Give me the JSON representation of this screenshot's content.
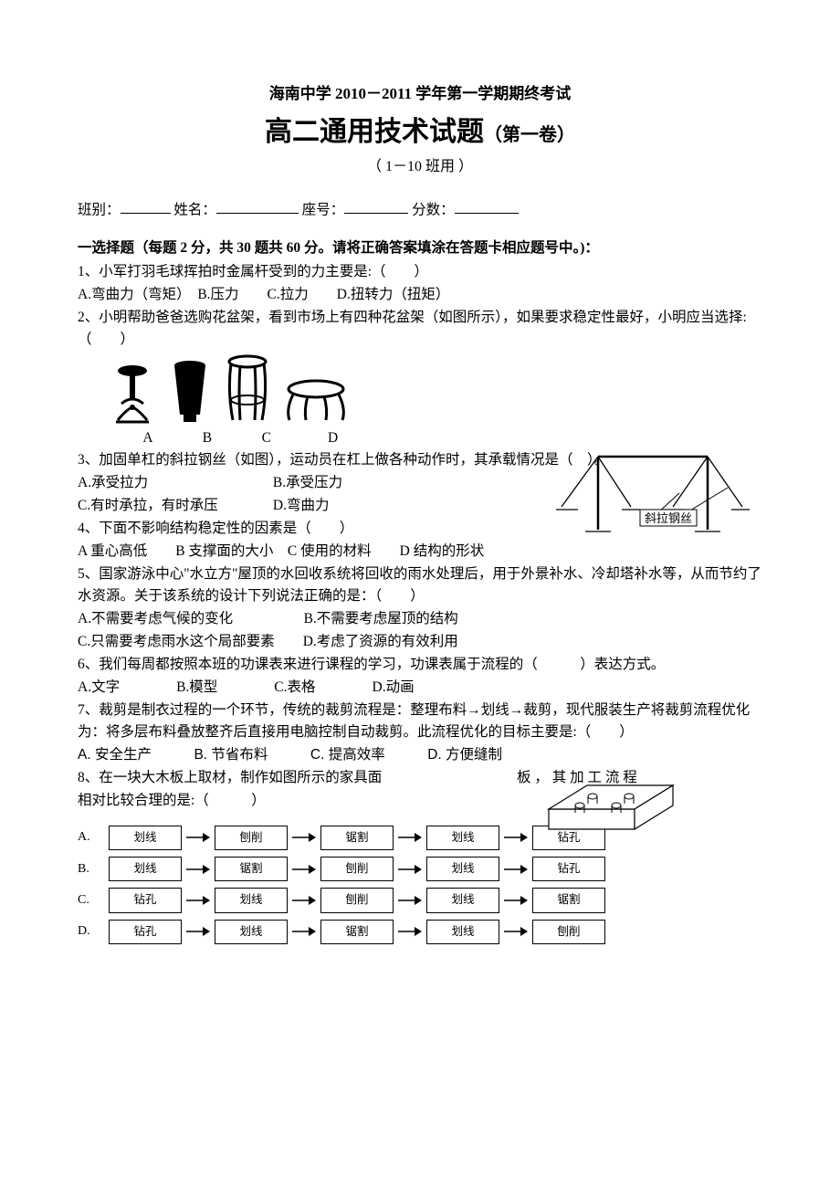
{
  "header": {
    "line1": "海南中学 2010－2011 学年第一学期期终考试",
    "line2_main": "高二通用技术试题",
    "line2_sub": "（第一卷）",
    "line3": "（ 1－10 班用 ）"
  },
  "info": {
    "class_label": "班别：",
    "name_label": "姓名：",
    "seat_label": "座号：",
    "score_label": "分数："
  },
  "section_title": "一选择题（每题 2 分，共 30 题共 60 分。请将正确答案填涂在答题卡相应题号中。)：",
  "q1": {
    "stem": "1、小军打羽毛球挥拍时金属杆受到的力主要是:（　　）",
    "opts": "A.弯曲力（弯矩）　B.压力　　C.拉力　　D.扭转力（扭矩）"
  },
  "q2": {
    "stem": "2、小明帮助爸爸选购花盆架，看到市场上有四种花盆架（如图所示），如果要求稳定性最好，小明应当选择:（　　）",
    "labels": {
      "a": "A",
      "b": "B",
      "c": "C",
      "d": "D"
    }
  },
  "q3": {
    "stem": "3、加固单杠的斜拉钢丝（如图），运动员在杠上做各种动作时，其承载情况是（　）。",
    "optA": "A.承受拉力",
    "optB": "B.承受压力",
    "optC": "C.有时承拉，有时承压",
    "optD": "D.弯曲力",
    "fig_label": "斜拉钢丝"
  },
  "q4": {
    "stem": "4、下面不影响结构稳定性的因素是（　　）",
    "opts": "A 重心高低　　B 支撑面的大小　C 使用的材料　　D 结构的形状"
  },
  "q5": {
    "stem": "5、国家游泳中心\"水立方\"屋顶的水回收系统将回收的雨水处理后，用于外景补水、冷却塔补水等，从而节约了水资源。关于该系统的设计下列说法正确的是：（　　）",
    "opts1": "A.不需要考虑气候的变化　　　　　B.不需要考虑屋顶的结构",
    "opts2": "C.只需要考虑雨水这个局部要素　　D.考虑了资源的有效利用"
  },
  "q6": {
    "stem": "6、我们每周都按照本班的功课表来进行课程的学习，功课表属于流程的（　　　）表达方式。",
    "opts": "A.文字　　　　B.模型　　　　C.表格　　　　D.动画"
  },
  "q7": {
    "stem": "7、裁剪是制衣过程的一个环节，传统的裁剪流程是：整理布料→划线→裁剪，现代服装生产将裁剪流程优化为：将多层布料叠放整齐后直接用电脑控制自动裁剪。此流程优化的目标主要是:（　　）",
    "opts": "A. 安全生产　　　B. 节省布料　　　C. 提高效率　　　D. 方便缝制"
  },
  "q8": {
    "stem_p1": "8、在一块大木板上取材，制作如图所示的家具面",
    "stem_p2": "板 ， 其 加 工 流 程",
    "stem_p3": "相对比较合理的是:（　　　）"
  },
  "flows": {
    "A": [
      "划线",
      "刨削",
      "锯割",
      "划线",
      "钻孔"
    ],
    "B": [
      "划线",
      "锯割",
      "刨削",
      "划线",
      "钻孔"
    ],
    "C": [
      "钻孔",
      "划线",
      "刨削",
      "划线",
      "锯割"
    ],
    "D": [
      "钻孔",
      "划线",
      "锯割",
      "划线",
      "刨削"
    ]
  },
  "flow_labels": {
    "A": "A.",
    "B": "B.",
    "C": "C.",
    "D": "D."
  },
  "colors": {
    "text": "#000000",
    "bg": "#ffffff",
    "line": "#000000"
  }
}
